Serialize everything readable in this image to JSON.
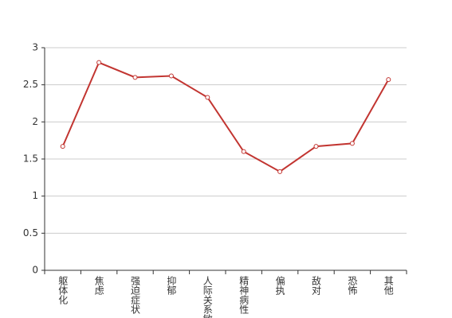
{
  "chart_data": {
    "type": "line",
    "categories": [
      "躯体化",
      "焦虑",
      "强迫症状",
      "抑郁",
      "人际关系敏感",
      "精神病性",
      "偏执",
      "敌对",
      "恐怖",
      "其他"
    ],
    "values": [
      1.67,
      2.8,
      2.6,
      2.62,
      2.33,
      1.6,
      1.33,
      1.67,
      1.71,
      2.57
    ],
    "color": "#c23531",
    "ylim": [
      0,
      3
    ],
    "yticks": [
      0,
      0.5,
      1,
      1.5,
      2,
      2.5,
      3
    ],
    "grid": true
  }
}
